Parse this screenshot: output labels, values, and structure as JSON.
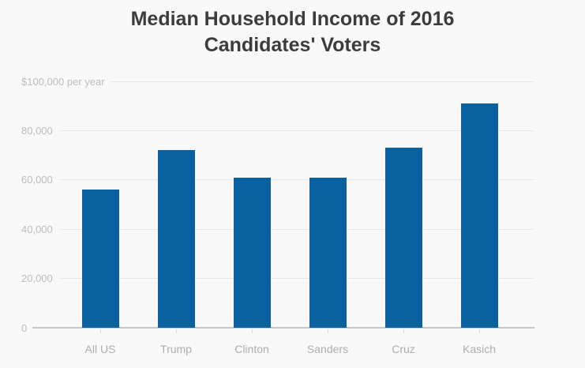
{
  "title": "Median Household Income of 2016 Candidates' Voters",
  "chart_data": {
    "type": "bar",
    "title": "Median Household Income of 2016 Candidates' Voters",
    "categories": [
      "All US",
      "Trump",
      "Clinton",
      "Sanders",
      "Cruz",
      "Kasich"
    ],
    "values": [
      56000,
      72000,
      61000,
      61000,
      73000,
      91000
    ],
    "xlabel": "",
    "ylabel": "$ per year",
    "ylim": [
      0,
      100000
    ],
    "ytick_interval": 20000,
    "ytick_labels": [
      "0",
      "20,000",
      "40,000",
      "60,000",
      "80,000",
      "$100,000 per year"
    ],
    "grid": true,
    "legend": false,
    "colors": {
      "bar": "#0a619f",
      "background": "#f9f9f9",
      "title": "#3c3c3c",
      "gridline": "#e9e9e9",
      "baseline": "#c8c8c8",
      "y_tick_label": "#bcbcbc",
      "x_tick_label": "#adadad"
    }
  }
}
